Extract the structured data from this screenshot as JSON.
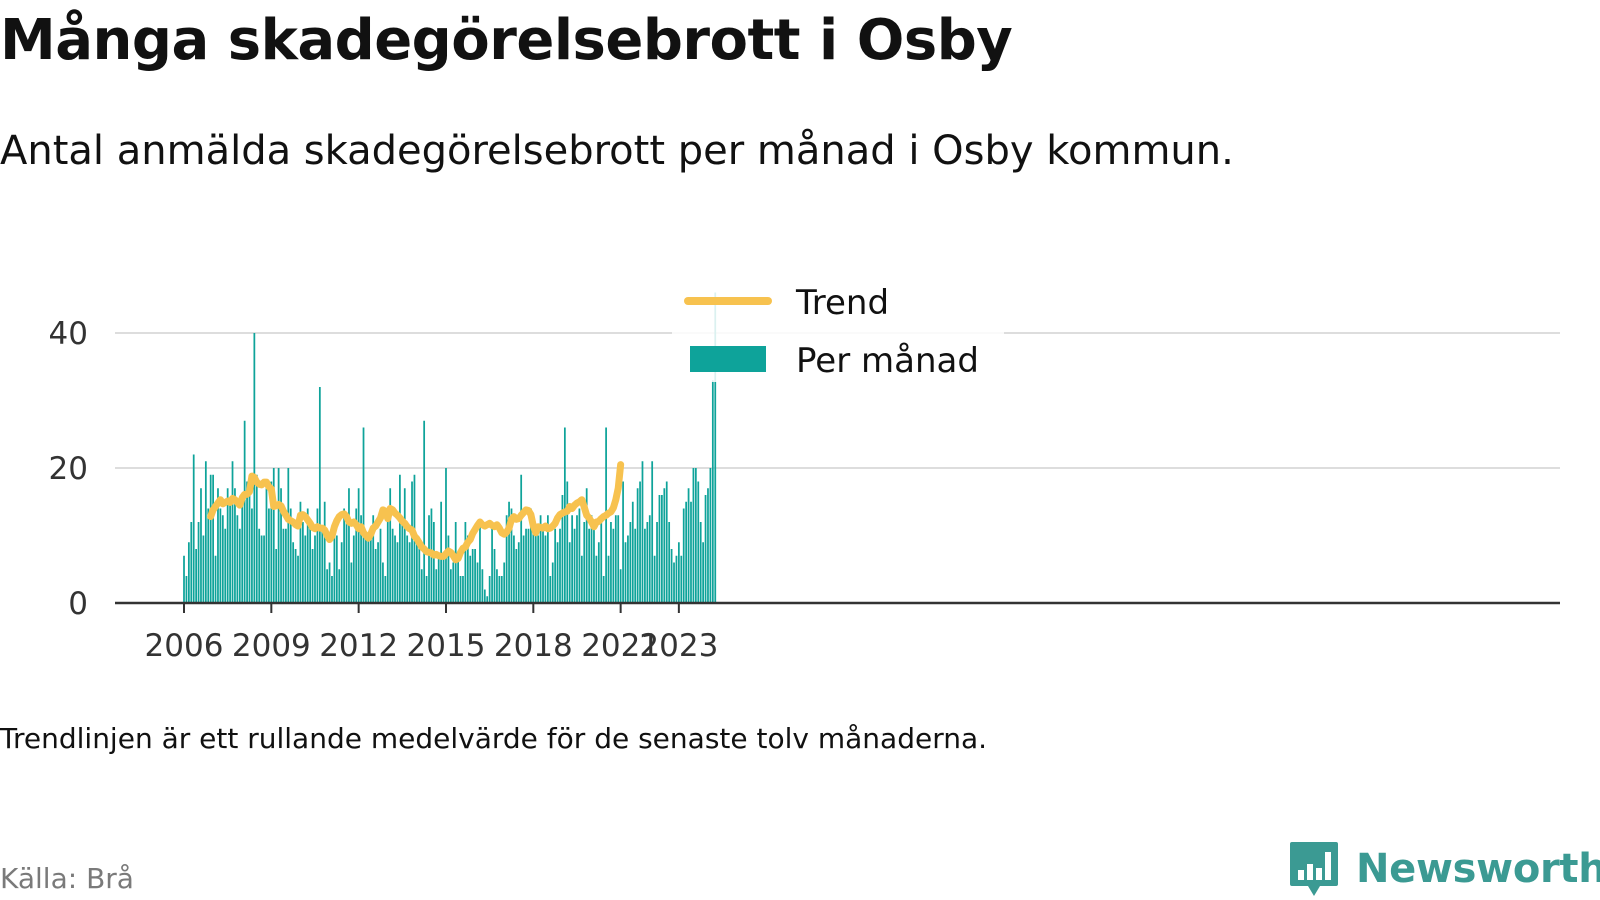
{
  "title": "Många skadegörelsebrott i Osby",
  "subtitle": "Antal anmälda skadegörelsebrott per månad i Osby kommun.",
  "note": "Trendlinjen är ett rullande medelvärde för de senaste tolv månaderna.",
  "source": "Källa: Brå",
  "brand": "Newsworthy",
  "colors": {
    "bar": "#0ea39a",
    "trend": "#f7c24f",
    "grid": "#dddddd",
    "axis": "#333333",
    "brand": "#3b9a93"
  },
  "chart_data": {
    "type": "bar",
    "legend": {
      "position": "top-center",
      "items": [
        {
          "label": "Trend",
          "kind": "line"
        },
        {
          "label": "Per månad",
          "kind": "bar"
        }
      ]
    },
    "start": "2006-01",
    "x_ticks": [
      {
        "year": 2006,
        "label": "2006"
      },
      {
        "year": 2009,
        "label": "2009"
      },
      {
        "year": 2012,
        "label": "2012"
      },
      {
        "year": 2015,
        "label": "2015"
      },
      {
        "year": 2018,
        "label": "2018"
      },
      {
        "year": 2021,
        "label": "2021"
      },
      {
        "year": 2023,
        "label": "2023"
      }
    ],
    "y_ticks": [
      0,
      20,
      40
    ],
    "ylim": [
      0,
      47
    ],
    "grid": true,
    "series": [
      {
        "name": "Per månad",
        "kind": "bar",
        "values": [
          7,
          4,
          9,
          12,
          22,
          8,
          12,
          17,
          10,
          21,
          14,
          19,
          19,
          7,
          17,
          14,
          13,
          11,
          17,
          15,
          21,
          17,
          13,
          11,
          15,
          27,
          18,
          18,
          14,
          40,
          19,
          11,
          10,
          10,
          17,
          14,
          18,
          20,
          8,
          20,
          17,
          11,
          11,
          20,
          14,
          9,
          8,
          7,
          15,
          12,
          10,
          14,
          12,
          8,
          10,
          14,
          32,
          11,
          15,
          5,
          6,
          4,
          11,
          10,
          5,
          9,
          14,
          12,
          17,
          6,
          10,
          14,
          17,
          13,
          26,
          10,
          10,
          10,
          13,
          8,
          9,
          11,
          6,
          4,
          12,
          17,
          11,
          10,
          9,
          19,
          12,
          17,
          10,
          9,
          18,
          19,
          10,
          9,
          5,
          27,
          4,
          13,
          14,
          12,
          5,
          7,
          15,
          7,
          20,
          10,
          5,
          6,
          12,
          7,
          4,
          4,
          12,
          10,
          7,
          8,
          8,
          6,
          12,
          5,
          2,
          1,
          4,
          11,
          8,
          5,
          4,
          4,
          6,
          13,
          15,
          14,
          10,
          8,
          9,
          19,
          10,
          11,
          11,
          14,
          13,
          11,
          10,
          13,
          11,
          10,
          13,
          4,
          6,
          11,
          9,
          11,
          16,
          26,
          18,
          9,
          13,
          11,
          13,
          14,
          7,
          12,
          17,
          11,
          13,
          11,
          7,
          9,
          12,
          4,
          26,
          7,
          12,
          11,
          13,
          13,
          5,
          18,
          9,
          10,
          12,
          15,
          11,
          17,
          18,
          21,
          11,
          12,
          13,
          21,
          7,
          12,
          16,
          16,
          17,
          18,
          12,
          8,
          6,
          7,
          9,
          7,
          14,
          15,
          17,
          15,
          20,
          20,
          18,
          12,
          9,
          16,
          17,
          20,
          33,
          46
        ]
      },
      {
        "name": "Trend",
        "kind": "line",
        "start_index": 11,
        "values": [
          12.8,
          13.8,
          14.3,
          14.8,
          15.3,
          14.7,
          14.9,
          15.1,
          14.9,
          15.5,
          15.3,
          14.9,
          14.5,
          15.6,
          16.1,
          16.1,
          16.5,
          18.8,
          18.6,
          17.9,
          17.6,
          17.5,
          17.9,
          17.9,
          17.2,
          16.9,
          14.3,
          14.4,
          14.6,
          14.4,
          13.6,
          13.0,
          12.4,
          12.2,
          12.0,
          11.6,
          11.4,
          13.0,
          13.1,
          12.8,
          12.3,
          11.8,
          11.2,
          11.0,
          11.3,
          11.1,
          11.1,
          10.8,
          10.0,
          9.4,
          9.9,
          11.3,
          12.2,
          12.8,
          13.1,
          13.2,
          12.8,
          12.0,
          11.8,
          12.0,
          11.6,
          11.0,
          11.3,
          10.4,
          10.0,
          9.6,
          10.2,
          11.1,
          11.4,
          12.0,
          12.6,
          13.8,
          13.6,
          12.5,
          14.0,
          13.8,
          13.3,
          13.0,
          12.6,
          12.1,
          11.8,
          11.3,
          11.0,
          10.8,
          9.9,
          9.5,
          8.9,
          8.3,
          8.0,
          7.6,
          7.5,
          7.4,
          7.1,
          7.2,
          7.0,
          6.9,
          6.9,
          7.3,
          7.7,
          7.5,
          7.0,
          6.4,
          6.6,
          7.5,
          8.1,
          8.3,
          9.0,
          9.4,
          10.3,
          10.9,
          11.5,
          12.0,
          11.6,
          11.4,
          11.6,
          11.8,
          11.5,
          11.3,
          11.6,
          11.1,
          10.4,
          10.2,
          10.5,
          11.1,
          12.4,
          12.8,
          12.4,
          12.5,
          13.0,
          13.4,
          13.8,
          13.7,
          13.1,
          11.4,
          10.4,
          11.3,
          11.2,
          11.1,
          11.4,
          11.0,
          11.1,
          11.4,
          11.8,
          12.6,
          13.1,
          13.3,
          13.5,
          13.6,
          14.3,
          14.0,
          14.5,
          14.8,
          15.0,
          15.3,
          14.2,
          13.0,
          12.6,
          12.0,
          11.3,
          12.0,
          12.1,
          12.5,
          12.8,
          13.0,
          13.3,
          13.5,
          14.1,
          15.3,
          17.0,
          20.5
        ]
      }
    ]
  }
}
